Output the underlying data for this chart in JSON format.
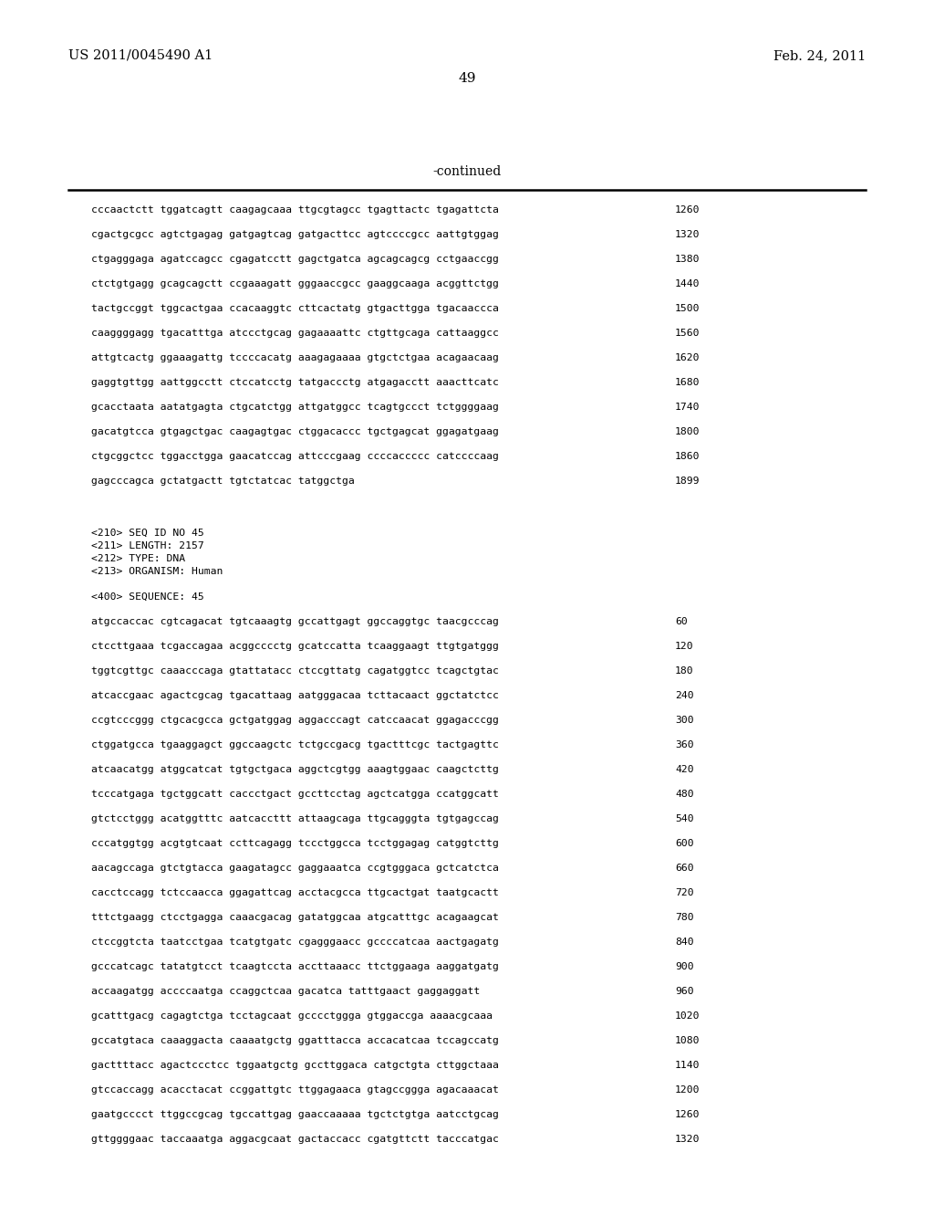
{
  "header_left": "US 2011/0045490 A1",
  "header_right": "Feb. 24, 2011",
  "page_number": "49",
  "continued_label": "-continued",
  "background_color": "#ffffff",
  "text_color": "#000000",
  "line_color": "#000000",
  "sequence_lines_top": [
    {
      "seq": "cccaactctt tggatcagtt caagagcaaa ttgcgtagcc tgagttactc tgagattcta",
      "num": "1260"
    },
    {
      "seq": "cgactgcgcc agtctgagag gatgagtcag gatgacttcc agtccccgcc aattgtggag",
      "num": "1320"
    },
    {
      "seq": "ctgagggaga agatccagcc cgagatcctt gagctgatca agcagcagcg cctgaaccgg",
      "num": "1380"
    },
    {
      "seq": "ctctgtgagg gcagcagctt ccgaaagatt gggaaccgcc gaaggcaaga acggttctgg",
      "num": "1440"
    },
    {
      "seq": "tactgccggt tggcactgaa ccacaaggtc cttcactatg gtgacttgga tgacaaccca",
      "num": "1500"
    },
    {
      "seq": "caaggggagg tgacatttga atccctgcag gagaaaattc ctgttgcaga cattaaggcc",
      "num": "1560"
    },
    {
      "seq": "attgtcactg ggaaagattg tccccacatg aaagagaaaa gtgctctgaa acagaacaag",
      "num": "1620"
    },
    {
      "seq": "gaggtgttgg aattggcctt ctccatcctg tatgaccctg atgagacctt aaacttcatc",
      "num": "1680"
    },
    {
      "seq": "gcacctaata aatatgagta ctgcatctgg attgatggcc tcagtgccct tctggggaag",
      "num": "1740"
    },
    {
      "seq": "gacatgtcca gtgagctgac caagagtgac ctggacaccc tgctgagcat ggagatgaag",
      "num": "1800"
    },
    {
      "seq": "ctgcggctcc tggacctgga gaacatccag attcccgaag ccccaccccc catccccaag",
      "num": "1860"
    },
    {
      "seq": "gagcccagca gctatgactt tgtctatcac tatggctga",
      "num": "1899"
    }
  ],
  "meta_lines": [
    "<210> SEQ ID NO 45",
    "<211> LENGTH: 2157",
    "<212> TYPE: DNA",
    "<213> ORGANISM: Human"
  ],
  "seq400_label": "<400> SEQUENCE: 45",
  "sequence_lines_bottom": [
    {
      "seq": "atgccaccac cgtcagacat tgtcaaagtg gccattgagt ggccaggtgc taacgcccag",
      "num": "60"
    },
    {
      "seq": "ctccttgaaa tcgaccagaa acggcccctg gcatccatta tcaaggaagt ttgtgatggg",
      "num": "120"
    },
    {
      "seq": "tggtcgttgc caaacccaga gtattatacc ctccgttatg cagatggtcc tcagctgtac",
      "num": "180"
    },
    {
      "seq": "atcaccgaac agactcgcag tgacattaag aatgggacaa tcttacaact ggctatctcc",
      "num": "240"
    },
    {
      "seq": "ccgtcccggg ctgcacgcca gctgatggag aggacccagt catccaacat ggagacccgg",
      "num": "300"
    },
    {
      "seq": "ctggatgcca tgaaggagct ggccaagctc tctgccgacg tgactttcgc tactgagttc",
      "num": "360"
    },
    {
      "seq": "atcaacatgg atggcatcat tgtgctgaca aggctcgtgg aaagtggaac caagctcttg",
      "num": "420"
    },
    {
      "seq": "tcccatgaga tgctggcatt caccctgact gccttcctag agctcatgga ccatggcatt",
      "num": "480"
    },
    {
      "seq": "gtctcctggg acatggtttc aatcaccttt attaagcaga ttgcagggta tgtgagccag",
      "num": "540"
    },
    {
      "seq": "cccatggtgg acgtgtcaat ccttcagagg tccctggcca tcctggagag catggtcttg",
      "num": "600"
    },
    {
      "seq": "aacagccaga gtctgtacca gaagatagcc gaggaaatca ccgtgggaca gctcatctca",
      "num": "660"
    },
    {
      "seq": "cacctccagg tctccaacca ggagattcag acctacgcca ttgcactgat taatgcactt",
      "num": "720"
    },
    {
      "seq": "tttctgaagg ctcctgagga caaacgacag gatatggcaa atgcatttgc acagaagcat",
      "num": "780"
    },
    {
      "seq": "ctccggtcta taatcctgaa tcatgtgatc cgagggaacc gccccatcaa aactgagatg",
      "num": "840"
    },
    {
      "seq": "gcccatcagc tatatgtcct tcaagtccta accttaaacc ttctggaaga aaggatgatg",
      "num": "900"
    },
    {
      "seq": "accaagatgg accccaatga ccaggctcaa gacatca tatttgaact gaggaggatt",
      "num": "960"
    },
    {
      "seq": "gcatttgacg cagagtctga tcctagcaat gcccctggga gtggaccga aaaacgcaaa",
      "num": "1020"
    },
    {
      "seq": "gccatgtaca caaaggacta caaaatgctg ggatttacca accacatcaa tccagccatg",
      "num": "1080"
    },
    {
      "seq": "gacttttacc agactccctcc tggaatgctg gccttggaca catgctgta cttggctaaa",
      "num": "1140"
    },
    {
      "seq": "gtccaccagg acacctacat ccggattgtc ttggagaaca gtagccggga agacaaacat",
      "num": "1200"
    },
    {
      "seq": "gaatgcccct ttggccgcag tgccattgag gaaccaaaaa tgctctgtga aatcctgcag",
      "num": "1260"
    },
    {
      "seq": "gttggggaac taccaaatga aggacgcaat gactaccacc cgatgttctt tacccatgac",
      "num": "1320"
    }
  ]
}
